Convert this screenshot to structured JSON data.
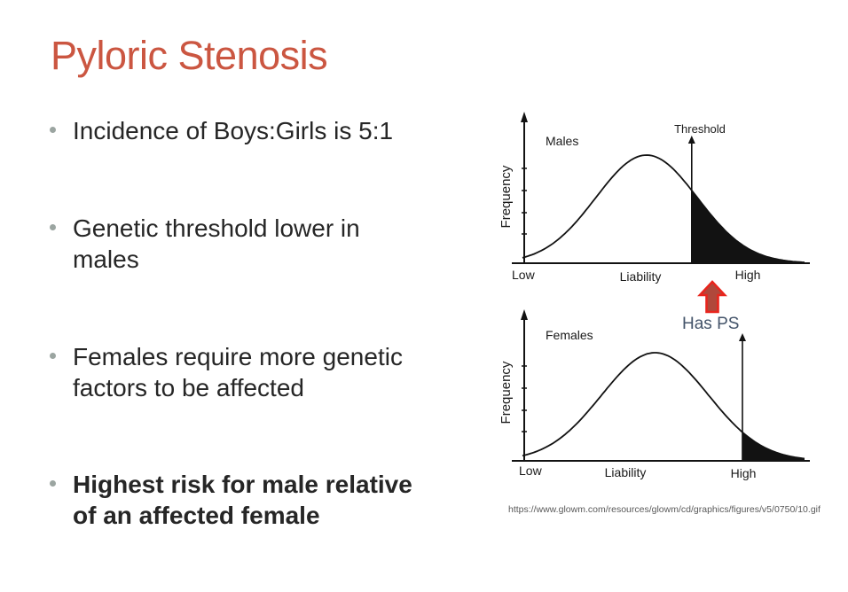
{
  "slide": {
    "title": "Pyloric Stenosis",
    "bullets": [
      {
        "text": "Incidence of Boys:Girls is 5:1",
        "bold": false
      },
      {
        "text": "Genetic threshold lower in\nmales",
        "bold": false
      },
      {
        "text": "Females require more genetic\nfactors to be affected",
        "bold": false
      },
      {
        "text": "Highest risk for male relative\nof an affected female",
        "bold": true
      }
    ],
    "annotation_label": "Has PS",
    "source_url": "https://www.glowm.com/resources/glowm/cd/graphics/figures/v5/0750/10.gif"
  },
  "colors": {
    "title": "#CB5641",
    "body_text": "#262626",
    "bullet_dot": "#9BA5A1",
    "chart_ink": "#121212",
    "shade": "#000000",
    "annotation_text": "#44546A",
    "arrow_fill": "#B0483B",
    "arrow_stroke": "#E8251D",
    "source_text": "#595959",
    "background": "#FFFFFF"
  },
  "chart_data": [
    {
      "type": "area",
      "curve": "gaussian",
      "series_label": "Males",
      "ylabel": "Frequency",
      "xlabel": "Liability",
      "x_tick_labels": [
        "Low",
        "High"
      ],
      "threshold_label": "Threshold",
      "mean": 0.44,
      "sd": 0.18,
      "threshold": 0.6,
      "shaded_region": "right_of_threshold",
      "grid": false,
      "legend": false
    },
    {
      "type": "area",
      "curve": "gaussian",
      "series_label": "Females",
      "ylabel": "Frequency",
      "xlabel": "Liability",
      "x_tick_labels": [
        "Low",
        "High"
      ],
      "threshold_label": "",
      "mean": 0.47,
      "sd": 0.19,
      "threshold": 0.78,
      "shaded_region": "right_of_threshold",
      "grid": false,
      "legend": false
    }
  ]
}
